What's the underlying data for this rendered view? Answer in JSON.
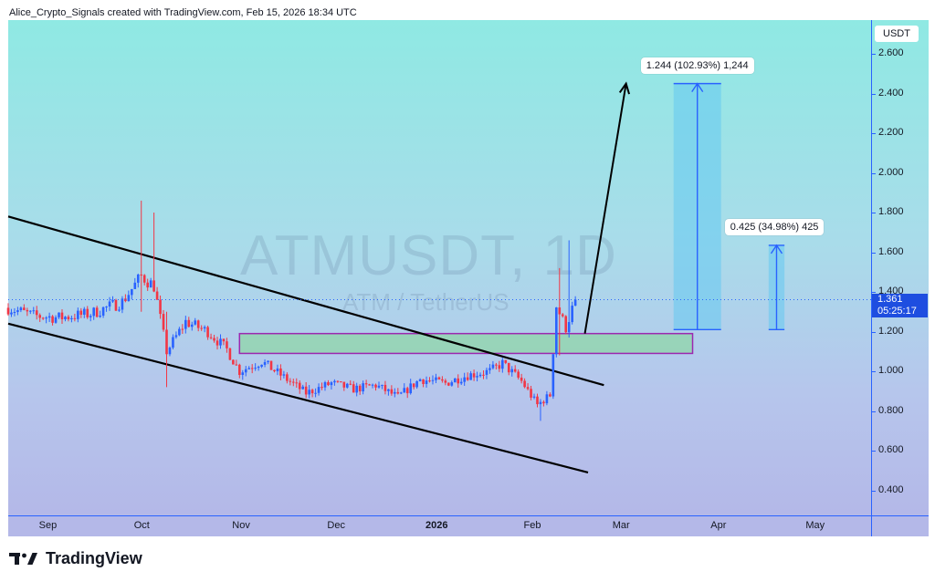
{
  "header": {
    "text": "Alice_Crypto_Signals created with TradingView.com, Feb 15, 2026 18:34 UTC"
  },
  "watermark": {
    "symbol": "ATMUSDT, 1D",
    "pair": "ATM / TetherUS"
  },
  "price_axis": {
    "currency": "USDT",
    "ticks": [
      "2.600",
      "2.400",
      "2.200",
      "2.000",
      "1.800",
      "1.600",
      "1.400",
      "1.200",
      "1.000",
      "0.800",
      "0.600",
      "0.400"
    ],
    "last_price": "1.361",
    "countdown": "05:25:17"
  },
  "time_axis": {
    "labels": [
      {
        "label": "Sep",
        "bold": false
      },
      {
        "label": "Oct",
        "bold": false
      },
      {
        "label": "Nov",
        "bold": false
      },
      {
        "label": "Dec",
        "bold": false
      },
      {
        "label": "2026",
        "bold": true
      },
      {
        "label": "Feb",
        "bold": false
      },
      {
        "label": "Mar",
        "bold": false
      },
      {
        "label": "Apr",
        "bold": false
      },
      {
        "label": "May",
        "bold": false
      }
    ]
  },
  "annotations": {
    "target_1": "1.244 (102.93%) 1,244",
    "target_2": "0.425 (34.98%) 425"
  },
  "footer": {
    "brand": "TradingView"
  },
  "colors": {
    "up_candle": "#2962ff",
    "down_candle": "#f23645",
    "support_zone_fill": "#8fd6a8",
    "support_zone_border": "#9c27b0",
    "projection_fill": "#64c8f0",
    "projection_line": "#2962ff",
    "channel_line": "#000000"
  },
  "chart_data": {
    "type": "candlestick",
    "symbol": "ATMUSDT",
    "timeframe": "1D",
    "quote": "USDT",
    "ylim": [
      0.3,
      2.75
    ],
    "last_price": 1.361,
    "price_path": [
      [
        "2025-08-20",
        1.32
      ],
      [
        "2025-08-28",
        1.28
      ],
      [
        "2025-09-05",
        1.27
      ],
      [
        "2025-09-15",
        1.29
      ],
      [
        "2025-09-25",
        1.35
      ],
      [
        "2025-10-01",
        1.48
      ],
      [
        "2025-10-05",
        1.43
      ],
      [
        "2025-10-09",
        1.1
      ],
      [
        "2025-10-15",
        1.25
      ],
      [
        "2025-10-22",
        1.2
      ],
      [
        "2025-10-28",
        1.11
      ],
      [
        "2025-11-01",
        1.0
      ],
      [
        "2025-11-08",
        1.05
      ],
      [
        "2025-11-15",
        0.97
      ],
      [
        "2025-11-22",
        0.89
      ],
      [
        "2025-11-30",
        0.94
      ],
      [
        "2025-12-07",
        0.91
      ],
      [
        "2025-12-14",
        0.93
      ],
      [
        "2025-12-21",
        0.87
      ],
      [
        "2025-12-28",
        0.96
      ],
      [
        "2026-01-05",
        0.94
      ],
      [
        "2026-01-12",
        0.98
      ],
      [
        "2026-01-19",
        1.0
      ],
      [
        "2026-01-23",
        1.04
      ],
      [
        "2026-01-29",
        0.95
      ],
      [
        "2026-02-03",
        0.83
      ],
      [
        "2026-02-07",
        0.88
      ],
      [
        "2026-02-09",
        1.33
      ],
      [
        "2026-02-12",
        1.22
      ],
      [
        "2026-02-15",
        1.361
      ]
    ],
    "spikes": [
      {
        "date": "2025-10-01",
        "high": 1.86,
        "low": 1.3
      },
      {
        "date": "2025-10-05",
        "high": 1.8,
        "low": 1.4
      },
      {
        "date": "2025-10-09",
        "high": 1.3,
        "low": 0.92
      },
      {
        "date": "2026-02-04",
        "high": 0.86,
        "low": 0.75
      },
      {
        "date": "2026-02-10",
        "high": 1.52,
        "low": 1.08
      },
      {
        "date": "2026-02-13",
        "high": 1.66,
        "low": 1.17
      }
    ],
    "channel": {
      "upper": {
        "from": [
          "2025-08-20",
          1.78
        ],
        "to": [
          "2026-02-24",
          0.93
        ]
      },
      "lower": {
        "from": [
          "2025-08-20",
          1.24
        ],
        "to": [
          "2026-02-19",
          0.49
        ]
      }
    },
    "support_zone": {
      "from": "2025-11-01",
      "to": "2026-03-24",
      "low": 1.09,
      "high": 1.19
    },
    "breakout_arrow": {
      "from": [
        "2026-02-18",
        1.19
      ],
      "to": [
        "2026-03-03",
        2.45
      ]
    },
    "projections": [
      {
        "from": "2026-03-18",
        "to": "2026-04-02",
        "base": 1.21,
        "top": 2.45,
        "label": "1.244 (102.93%) 1,244"
      },
      {
        "from": "2026-04-17",
        "to": "2026-04-22",
        "base": 1.21,
        "top": 1.635,
        "label": "0.425 (34.98%) 425"
      }
    ],
    "time_labels": [
      "Sep",
      "Oct",
      "Nov",
      "Dec",
      "2026",
      "Feb",
      "Mar",
      "Apr",
      "May"
    ]
  }
}
